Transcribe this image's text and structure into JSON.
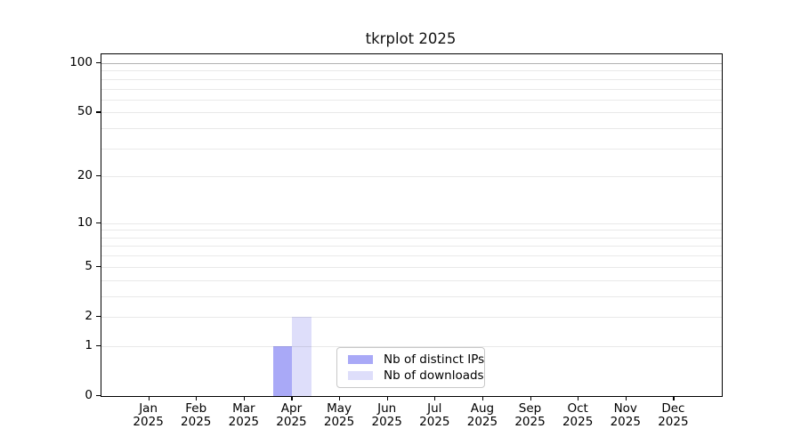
{
  "chart_data": {
    "type": "bar",
    "title": "tkrplot 2025",
    "categories": [
      "Jan",
      "Feb",
      "Mar",
      "Apr",
      "May",
      "Jun",
      "Jul",
      "Aug",
      "Sep",
      "Oct",
      "Nov",
      "Dec"
    ],
    "category_year": "2025",
    "series": [
      {
        "name": "Nb of distinct IPs",
        "color": "#a9a9f7",
        "values": [
          0,
          0,
          0,
          1,
          0,
          0,
          0,
          0,
          0,
          0,
          0,
          0
        ]
      },
      {
        "name": "Nb of downloads",
        "color": "#dedefa",
        "values": [
          0,
          0,
          0,
          2,
          0,
          0,
          0,
          0,
          0,
          0,
          0,
          0
        ]
      }
    ],
    "xlabel": "",
    "ylabel": "",
    "y_scale": "log1p",
    "ylim": [
      0,
      100
    ],
    "y_ticks": [
      0,
      1,
      2,
      5,
      10,
      20,
      50,
      100
    ],
    "y_minor_gridlines": [
      1,
      2,
      3,
      4,
      5,
      6,
      7,
      8,
      9,
      10,
      20,
      30,
      40,
      50,
      60,
      70,
      80,
      90
    ],
    "y_major_gridlines": [
      100
    ],
    "grid": true,
    "legend_position": "inside-bottom-center"
  },
  "colors": {
    "background": "#ffffff",
    "spine": "#000000",
    "grid_minor": "#ebebeb",
    "grid_major": "#b3b3b3",
    "legend_border": "#c8c8c8",
    "text": "#000000"
  }
}
